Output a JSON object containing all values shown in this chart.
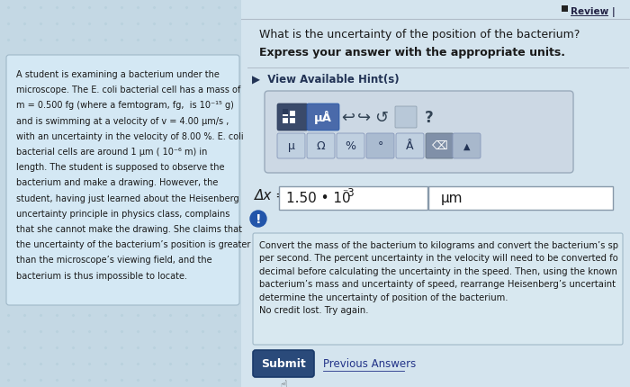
{
  "bg_main": "#c4d8e4",
  "bg_left_panel": "#d4e8f4",
  "bg_right": "#ccdde8",
  "text_dark": "#1a1a1a",
  "text_blue": "#223388",
  "review_text": "Review |",
  "question_line1": "What is the uncertainty of the position of the bacterium?",
  "question_line2": "Express your answer with the appropriate units.",
  "hint_label": "▶  View Available Hint(s)",
  "hint_text_line1": "Convert the mass of the bacterium to kilograms and convert the bacterium’s sp",
  "hint_text_line2": "per second. The percent uncertainty in the velocity will need to be converted fo",
  "hint_text_line3": "decimal before calculating the uncertainty in the speed. Then, using the known",
  "hint_text_line4": "bacterium’s mass and uncertainty of speed, rearrange Heisenberg’s uncertaint",
  "hint_text_line5": "determine the uncertainty of position of the bacterium.",
  "hint_text_line6": "No credit lost. Try again.",
  "submit_text": "Submit",
  "prev_answers_text": "Previous Answers",
  "left_text_line1": "A student is examining a bacterium under the",
  "left_text_line2": "microscope. The E. coli bacterial cell has a mass of",
  "left_text_line3": "m = 0.500 fg (where a femtogram, fg,  is 10",
  "left_text_line3b": "⁻¹⁵",
  "left_text_line3c": " g)",
  "left_text_line4": "and is swimming at a velocity of v = 4.00 μm/s ,",
  "left_text_line5": "with an uncertainty in the velocity of 8.00 %. E. coli",
  "left_text_line6": "bacterial cells are around 1 μm ( 10",
  "left_text_line6b": "⁻⁶",
  "left_text_line6c": " m) in",
  "left_text_line7": "length. The student is supposed to observe the",
  "left_text_line8": "bacterium and make a drawing. However, the",
  "left_text_line9": "student, having just learned about the Heisenberg",
  "left_text_line10": "uncertainty principle in physics class, complains",
  "left_text_line11": "that she cannot make the drawing. She claims that",
  "left_text_line12": "the uncertainty of the bacterium’s position is greater",
  "left_text_line13": "than the microscope’s viewing field, and the",
  "left_text_line14": "bacterium is thus impossible to locate.",
  "dot_color": "#b0ccd8",
  "panel_content_box_bg": "#d8e8f0",
  "panel_content_box_edge": "#a0b8c8",
  "toolbar_bg": "#ccd8e4",
  "toolbar_edge": "#99aabb",
  "grid_btn_bg": "#3a4a6a",
  "mu_btn_bg": "#4a6aaa",
  "row2_btn_bg": "#c0d0e0",
  "row2_btn_edge": "#8899bb",
  "back_btn_bg": "#8090a8",
  "ans_box_bg": "#ffffff",
  "ans_box_edge": "#8899aa",
  "submit_bg": "#2a4a7a",
  "submit_edge": "#1a3a6a",
  "warning_bg": "#2255aa"
}
